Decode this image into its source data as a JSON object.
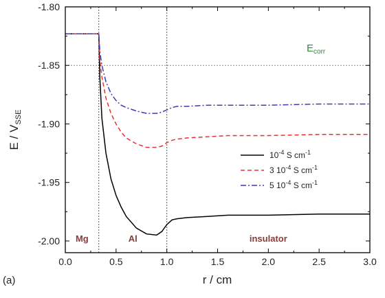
{
  "panel_label": "(a)",
  "chart_data": {
    "type": "line",
    "xlabel": "r / cm",
    "ylabel_main": "E / V",
    "ylabel_sub": "SSE",
    "xlim": [
      0.0,
      3.0
    ],
    "ylim": [
      -2.01,
      -1.8
    ],
    "x_ticks": [
      "0.0",
      "0.5",
      "1.0",
      "1.5",
      "2.0",
      "2.5",
      "3.0"
    ],
    "y_ticks": [
      "-1.80",
      "-1.85",
      "-1.90",
      "-1.95",
      "-2.00"
    ],
    "x_tick_values": [
      0.0,
      0.5,
      1.0,
      1.5,
      2.0,
      2.5,
      3.0
    ],
    "y_tick_values": [
      -1.8,
      -1.85,
      -1.9,
      -1.95,
      -2.0
    ],
    "ecorr": {
      "value": -1.85,
      "label_main": "E",
      "label_sub": "corr",
      "color": "#2e8b3a"
    },
    "boundaries": [
      0.33,
      1.0
    ],
    "regions": [
      {
        "label": "Mg",
        "x": 0.165
      },
      {
        "label": "Al",
        "x": 0.665
      },
      {
        "label": "insulator",
        "x": 2.0
      }
    ],
    "legend_position": "center-right",
    "series": [
      {
        "name_main": "10",
        "name_exp": "-4",
        "name_rest": " S cm",
        "name_unit_exp": "-1",
        "color": "#000000",
        "dash": "solid",
        "x": [
          0.0,
          0.33,
          0.34,
          0.36,
          0.4,
          0.45,
          0.5,
          0.55,
          0.6,
          0.7,
          0.8,
          0.9,
          0.95,
          1.0,
          1.05,
          1.1,
          1.2,
          1.4,
          1.6,
          2.0,
          2.5,
          3.0
        ],
        "y": [
          -1.823,
          -1.823,
          -1.86,
          -1.895,
          -1.925,
          -1.947,
          -1.961,
          -1.971,
          -1.979,
          -1.989,
          -1.994,
          -1.995,
          -1.992,
          -1.986,
          -1.982,
          -1.981,
          -1.98,
          -1.979,
          -1.978,
          -1.978,
          -1.977,
          -1.977
        ]
      },
      {
        "name_main": "3 10",
        "name_exp": "-4",
        "name_rest": " S cm",
        "name_unit_exp": "-1",
        "color": "#e8302a",
        "dash": "dashed",
        "x": [
          0.0,
          0.33,
          0.34,
          0.36,
          0.4,
          0.45,
          0.5,
          0.55,
          0.6,
          0.7,
          0.8,
          0.9,
          0.95,
          1.0,
          1.05,
          1.1,
          1.2,
          1.4,
          1.6,
          2.0,
          2.5,
          3.0
        ],
        "y": [
          -1.823,
          -1.823,
          -1.845,
          -1.86,
          -1.878,
          -1.891,
          -1.9,
          -1.907,
          -1.912,
          -1.917,
          -1.92,
          -1.92,
          -1.919,
          -1.916,
          -1.914,
          -1.913,
          -1.912,
          -1.911,
          -1.91,
          -1.91,
          -1.909,
          -1.909
        ]
      },
      {
        "name_main": "5 10",
        "name_exp": "-4",
        "name_rest": " S cm",
        "name_unit_exp": "-1",
        "color": "#3a3ab8",
        "dash": "dashdot",
        "x": [
          0.0,
          0.33,
          0.34,
          0.36,
          0.4,
          0.45,
          0.5,
          0.55,
          0.6,
          0.7,
          0.8,
          0.9,
          0.95,
          1.0,
          1.05,
          1.1,
          1.2,
          1.4,
          1.6,
          2.0,
          2.5,
          3.0
        ],
        "y": [
          -1.823,
          -1.823,
          -1.838,
          -1.85,
          -1.864,
          -1.874,
          -1.88,
          -1.884,
          -1.886,
          -1.889,
          -1.891,
          -1.891,
          -1.89,
          -1.888,
          -1.886,
          -1.885,
          -1.885,
          -1.884,
          -1.884,
          -1.884,
          -1.883,
          -1.883
        ]
      }
    ]
  }
}
